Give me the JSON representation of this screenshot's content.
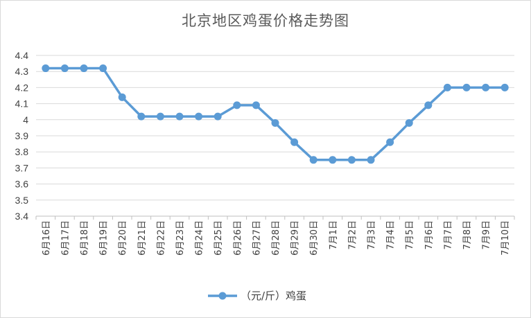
{
  "chart_data": {
    "type": "line",
    "title": "北京地区鸡蛋价格走势图",
    "xlabel": "",
    "ylabel": "",
    "categories": [
      "6月16日",
      "6月17日",
      "6月18日",
      "6月19日",
      "6月20日",
      "6月21日",
      "6月22日",
      "6月23日",
      "6月24日",
      "6月25日",
      "6月26日",
      "6月27日",
      "6月28日",
      "6月29日",
      "6月30日",
      "7月1日",
      "7月2日",
      "7月3日",
      "7月4日",
      "7月5日",
      "7月6日",
      "7月7日",
      "7月8日",
      "7月9日",
      "7月10日"
    ],
    "series": [
      {
        "name": "（元/斤）鸡蛋",
        "color": "#5b9bd5",
        "values": [
          4.32,
          4.32,
          4.32,
          4.32,
          4.14,
          4.02,
          4.02,
          4.02,
          4.02,
          4.02,
          4.09,
          4.09,
          3.98,
          3.86,
          3.75,
          3.75,
          3.75,
          3.75,
          3.86,
          3.98,
          4.09,
          4.2,
          4.2,
          4.2,
          4.2
        ]
      }
    ],
    "ylim": [
      3.4,
      4.4
    ],
    "yticks": [
      "3.4",
      "3.5",
      "3.6",
      "3.7",
      "3.8",
      "3.9",
      "4",
      "4.1",
      "4.2",
      "4.3",
      "4.4"
    ],
    "grid": true,
    "legend_position": "bottom"
  }
}
